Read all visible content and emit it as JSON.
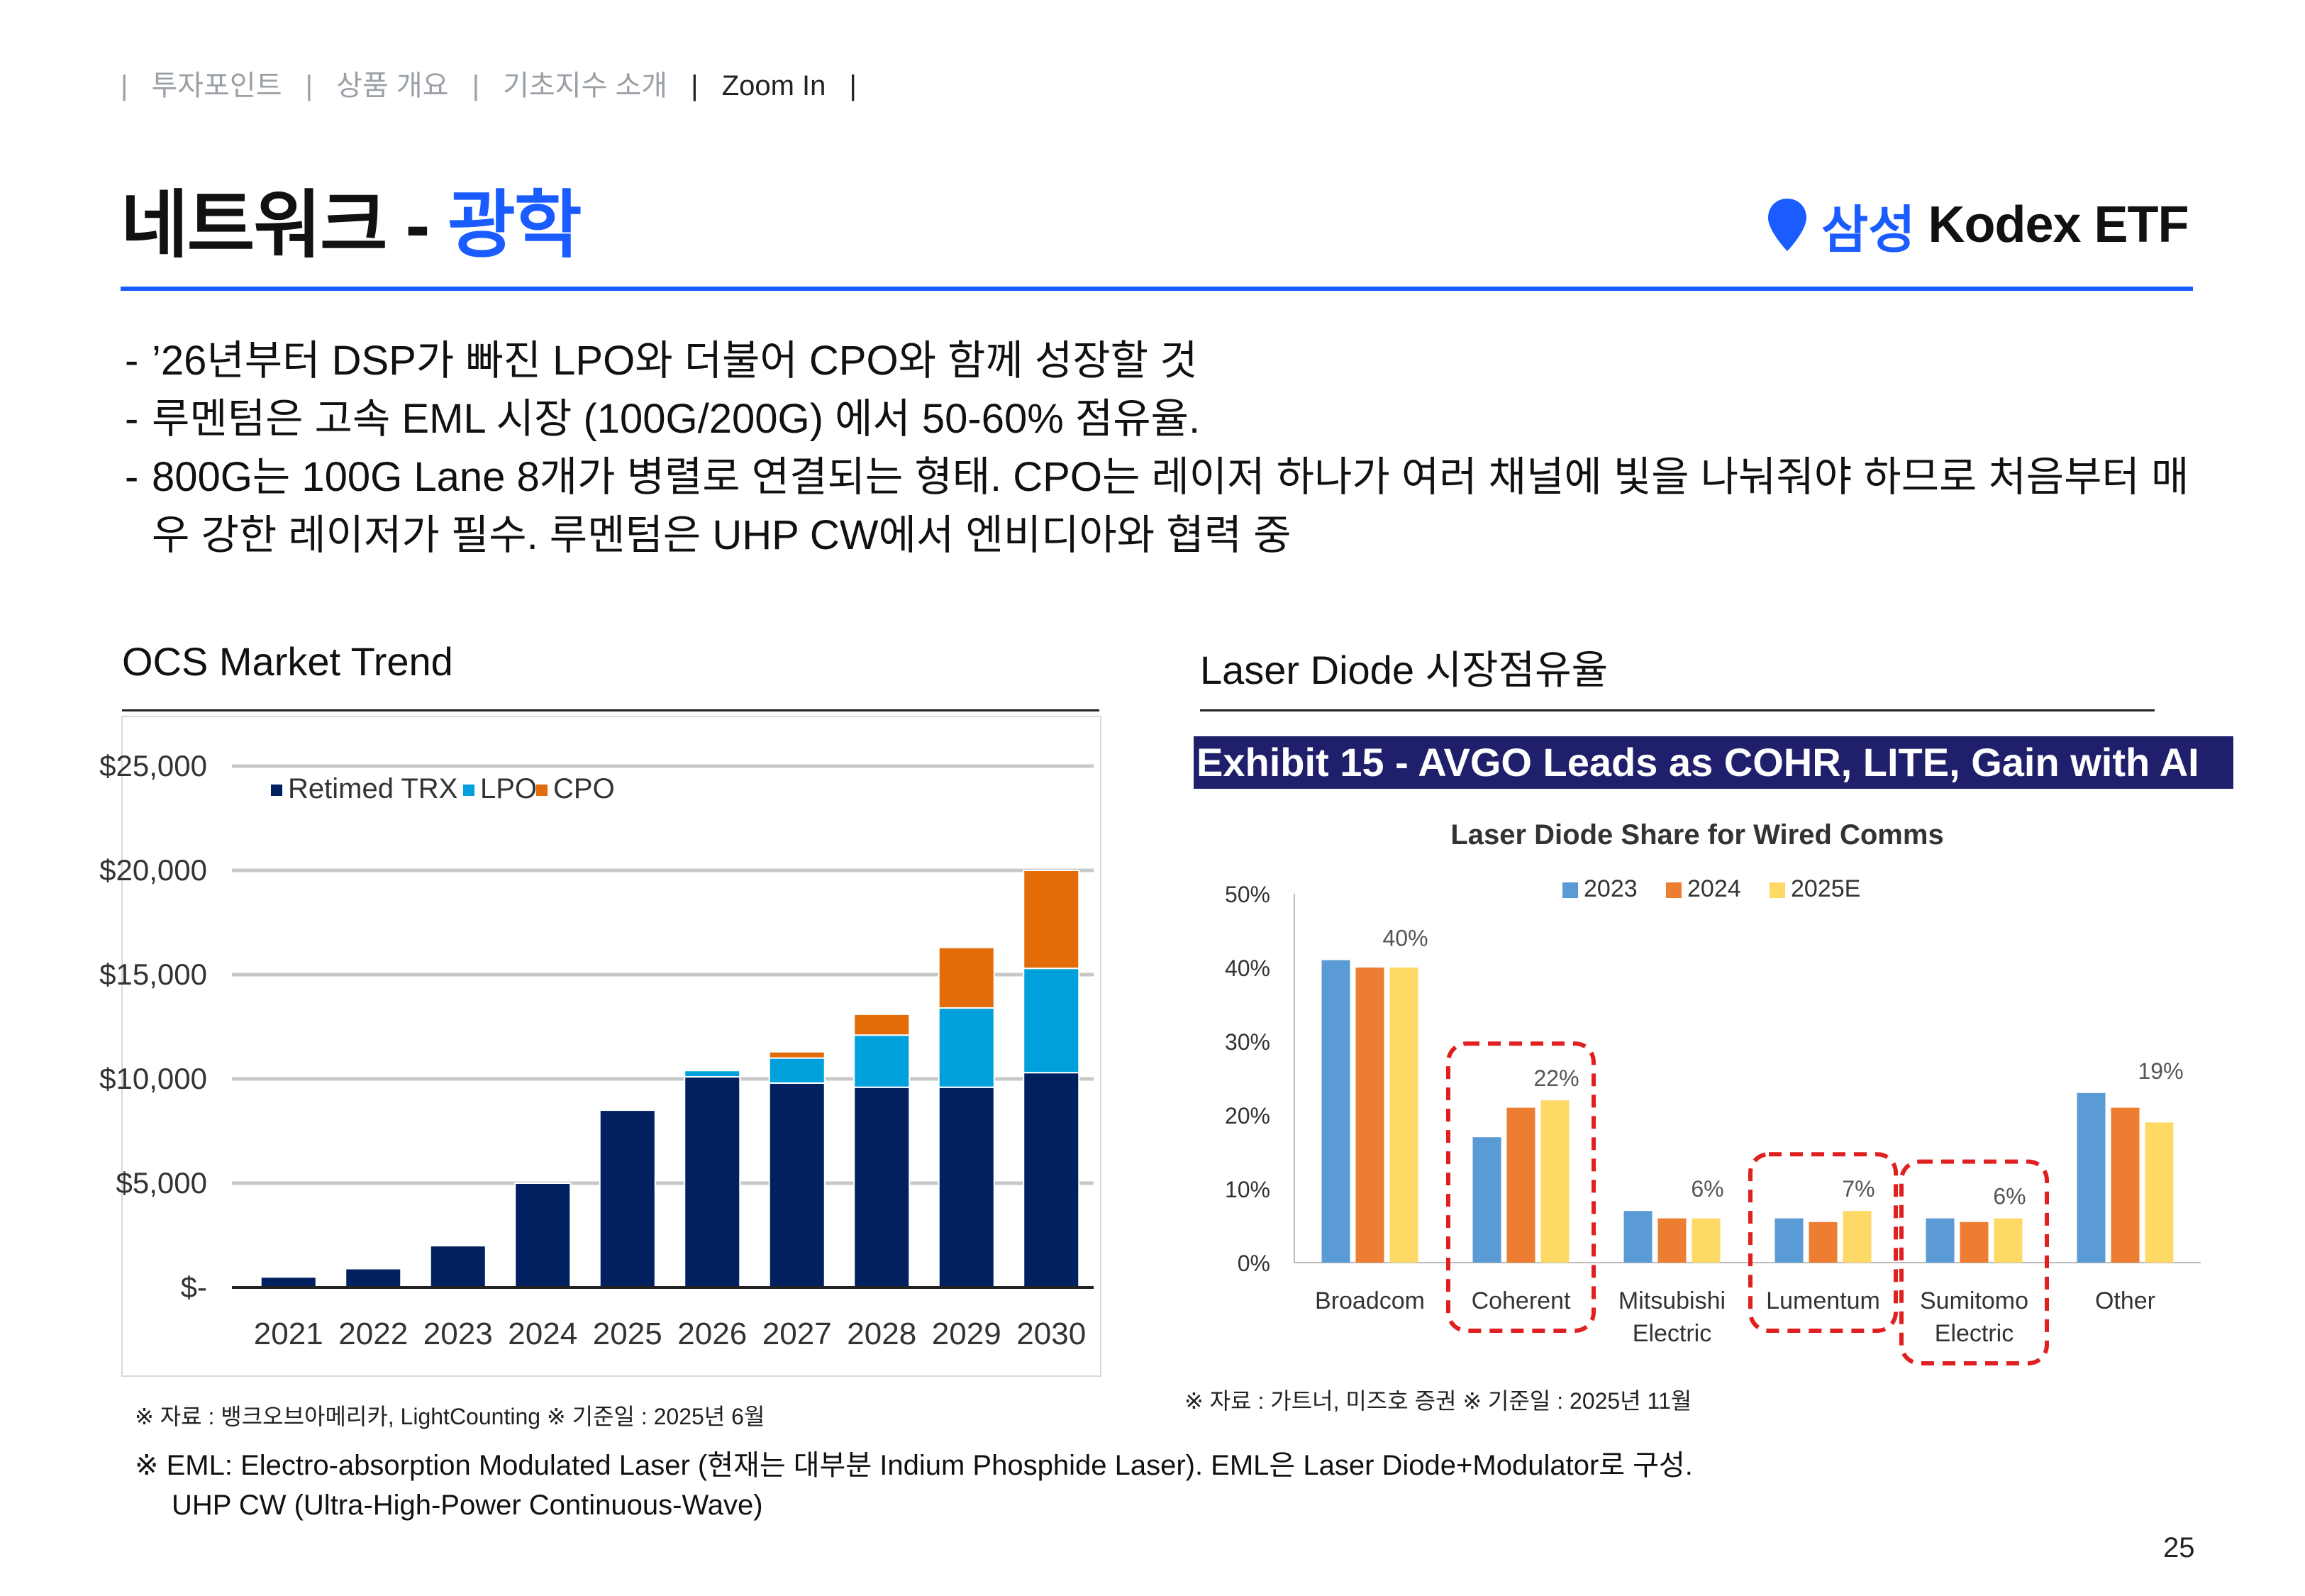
{
  "breadcrumb": {
    "items": [
      "투자포인트",
      "상품 개요",
      "기초지수 소개",
      "Zoom In"
    ],
    "separator": "|"
  },
  "title": {
    "main": "네트워크 -",
    "accent": "광학"
  },
  "logo": {
    "icon": "location-pin-icon",
    "brand": "삼성",
    "product": "Kodex ETF"
  },
  "bullets": [
    "’26년부터 DSP가 빠진 LPO와 더불어 CPO와 함께 성장할 것",
    "루멘텀은 고속 EML 시장 (100G/200G) 에서 50-60% 점유율.",
    "800G는 100G Lane 8개가 병렬로 연결되는 형태. CPO는 레이저 하나가 여러 채널에 빛을 나눠줘야 하므로 처음부터 매우 강한 레이저가 필수. 루멘텀은 UHP CW에서 엔비디아와 협력 중"
  ],
  "left_section": {
    "title": "OCS Market Trend",
    "source": "※ 자료 : 뱅크오브아메리카, LightCounting ※ 기준일 : 2025년 6월"
  },
  "right_section": {
    "title": "Laser Diode 시장점유율",
    "exhibit": "Exhibit 15 - AVGO Leads as COHR, LITE, Gain with AI",
    "source": "※ 자료 : 가트너, 미즈호 증권 ※ 기준일 : 2025년 11월"
  },
  "footnote": {
    "line1": "※ EML: Electro-absorption Modulated Laser (현재는 대부분 Indium Phosphide Laser). EML은 Laser Diode+Modulator로 구성.",
    "line2": "UHP CW (Ultra-High-Power Continuous-Wave)"
  },
  "page_number": "25",
  "colors": {
    "accent": "#1a5cff",
    "trx": "#002060",
    "lpo": "#00a0dc",
    "cpo": "#e36c09",
    "y2023": "#5b9bd5",
    "y2024": "#ed7d31",
    "y2025": "#ffd966",
    "highlight": "#e02020",
    "exhibit_bg": "#1f1f6b"
  },
  "chart_data": [
    {
      "type": "bar",
      "stacked": true,
      "title": "OCS Market Trend",
      "categories": [
        "2021",
        "2022",
        "2023",
        "2024",
        "2025",
        "2026",
        "2027",
        "2028",
        "2029",
        "2030"
      ],
      "series": [
        {
          "name": "Retimed TRX",
          "values": [
            500,
            900,
            2000,
            5000,
            8500,
            10100,
            9800,
            9600,
            9600,
            10300
          ]
        },
        {
          "name": "LPO",
          "values": [
            0,
            0,
            0,
            0,
            0,
            300,
            1200,
            2500,
            3800,
            5000
          ]
        },
        {
          "name": "CPO",
          "values": [
            0,
            0,
            0,
            0,
            0,
            0,
            300,
            1000,
            2900,
            4700
          ]
        }
      ],
      "y_ticks": [
        0,
        5000,
        10000,
        15000,
        20000,
        25000
      ],
      "y_tick_labels": [
        "$-",
        "$5,000",
        "$10,000",
        "$15,000",
        "$20,000",
        "$25,000"
      ],
      "ylim": [
        0,
        25000
      ],
      "legend_position": "top-left",
      "grid": true
    },
    {
      "type": "bar",
      "title": "Laser Diode Share for Wired Comms",
      "categories": [
        "Broadcom",
        "Coherent",
        "Mitsubishi Electric",
        "Lumentum",
        "Sumitomo Electric",
        "Other"
      ],
      "category_lines": [
        [
          "Broadcom"
        ],
        [
          "Coherent"
        ],
        [
          "Mitsubishi",
          "Electric"
        ],
        [
          "Lumentum"
        ],
        [
          "Sumitomo",
          "Electric"
        ],
        [
          "Other"
        ]
      ],
      "series": [
        {
          "name": "2023",
          "values": [
            41,
            17,
            7,
            6,
            6,
            23
          ]
        },
        {
          "name": "2024",
          "values": [
            40,
            21,
            6,
            5.5,
            5.5,
            21
          ]
        },
        {
          "name": "2025E",
          "values": [
            40,
            22,
            6,
            7,
            6,
            19
          ]
        }
      ],
      "data_labels": [
        "40%",
        "22%",
        "6%",
        "7%",
        "6%",
        "19%"
      ],
      "highlighted": [
        "Coherent",
        "Lumentum",
        "Sumitomo Electric"
      ],
      "y_ticks": [
        0,
        10,
        20,
        30,
        40,
        50
      ],
      "y_tick_labels": [
        "0%",
        "10%",
        "20%",
        "30%",
        "40%",
        "50%"
      ],
      "ylim": [
        0,
        50
      ],
      "legend_position": "top-center",
      "grid": false
    }
  ]
}
